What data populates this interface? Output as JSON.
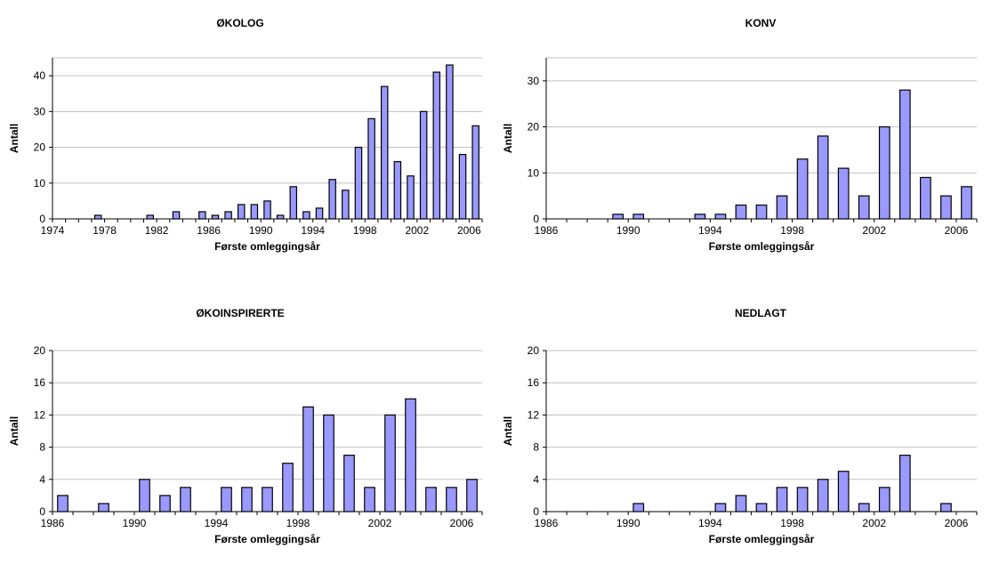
{
  "chart_data": [
    {
      "type": "bar",
      "title": "ØKOLOG",
      "xlabel": "Første omleggingsår",
      "ylabel": "Antall",
      "x_range": [
        1974,
        2006
      ],
      "x_ticks": [
        1974,
        1978,
        1982,
        1986,
        1990,
        1994,
        1998,
        2002,
        2006
      ],
      "ylim": [
        0,
        45
      ],
      "y_ticks": [
        0,
        10,
        20,
        30,
        40
      ],
      "grid": true,
      "bar_color": "#9999ff",
      "x": [
        1977,
        1981,
        1983,
        1985,
        1986,
        1987,
        1988,
        1989,
        1990,
        1991,
        1992,
        1993,
        1994,
        1995,
        1996,
        1997,
        1998,
        1999,
        2000,
        2001,
        2002,
        2003,
        2004,
        2005,
        2006
      ],
      "values": [
        1,
        1,
        2,
        2,
        1,
        2,
        4,
        4,
        5,
        1,
        9,
        2,
        3,
        11,
        8,
        20,
        28,
        37,
        16,
        12,
        30,
        41,
        43,
        18,
        26
      ]
    },
    {
      "type": "bar",
      "title": "KONV",
      "xlabel": "Første omleggingsår",
      "ylabel": "Antall",
      "x_range": [
        1986,
        2006
      ],
      "x_ticks": [
        1986,
        1990,
        1994,
        1998,
        2002,
        2006
      ],
      "ylim": [
        0,
        35
      ],
      "y_ticks": [
        0,
        10,
        20,
        30
      ],
      "grid": true,
      "bar_color": "#9999ff",
      "x": [
        1989,
        1990,
        1993,
        1994,
        1995,
        1996,
        1997,
        1998,
        1999,
        2000,
        2001,
        2002,
        2003,
        2004,
        2005,
        2006
      ],
      "values": [
        1,
        1,
        1,
        1,
        3,
        3,
        5,
        13,
        18,
        11,
        5,
        20,
        28,
        9,
        5,
        7
      ]
    },
    {
      "type": "bar",
      "title": "ØKOINSPIRERTE",
      "xlabel": "Første omleggingsår",
      "ylabel": "Antall",
      "x_range": [
        1986,
        2006
      ],
      "x_ticks": [
        1986,
        1990,
        1994,
        1998,
        2002,
        2006
      ],
      "ylim": [
        0,
        20
      ],
      "y_ticks": [
        0,
        4,
        8,
        12,
        16,
        20
      ],
      "grid": true,
      "bar_color": "#9999ff",
      "x": [
        1986,
        1988,
        1990,
        1991,
        1992,
        1994,
        1995,
        1996,
        1997,
        1998,
        1999,
        2000,
        2001,
        2002,
        2003,
        2004,
        2005,
        2006
      ],
      "values": [
        2,
        1,
        4,
        2,
        3,
        3,
        3,
        3,
        6,
        13,
        12,
        7,
        3,
        12,
        14,
        3,
        3,
        4
      ]
    },
    {
      "type": "bar",
      "title": "NEDLAGT",
      "xlabel": "Første omleggingsår",
      "ylabel": "Antall",
      "x_range": [
        1986,
        2006
      ],
      "x_ticks": [
        1986,
        1990,
        1994,
        1998,
        2002,
        2006
      ],
      "ylim": [
        0,
        20
      ],
      "y_ticks": [
        0,
        4,
        8,
        12,
        16,
        20
      ],
      "grid": true,
      "bar_color": "#9999ff",
      "x": [
        1990,
        1994,
        1995,
        1996,
        1997,
        1998,
        1999,
        2000,
        2001,
        2002,
        2003,
        2005
      ],
      "values": [
        1,
        1,
        2,
        1,
        3,
        3,
        4,
        5,
        1,
        3,
        7,
        1
      ]
    }
  ]
}
